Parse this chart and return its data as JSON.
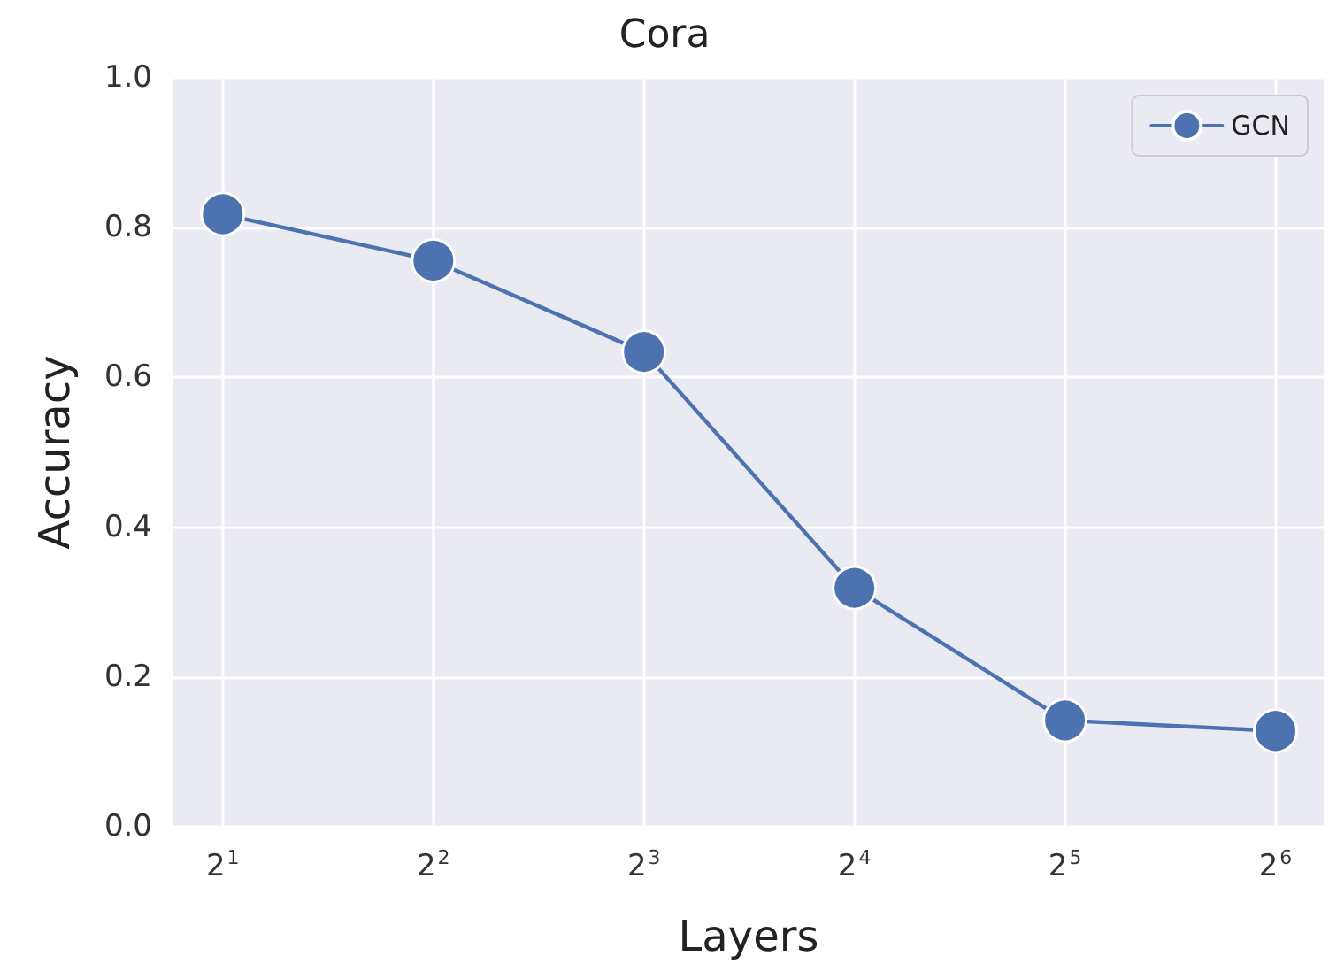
{
  "chart_data": {
    "type": "line",
    "title": "Cora",
    "xlabel": "Layers",
    "ylabel": "Accuracy",
    "x": [
      2,
      4,
      8,
      16,
      32,
      64
    ],
    "series": [
      {
        "name": "GCN",
        "color": "#4c72b0",
        "values": [
          0.818,
          0.756,
          0.634,
          0.319,
          0.142,
          0.128
        ]
      }
    ],
    "log": "x",
    "xlim": [
      1.7,
      75
    ],
    "xticks": [
      {
        "value": 2,
        "label": "2$^{1}$"
      },
      {
        "value": 4,
        "label": "2$^{2}$"
      },
      {
        "value": 8,
        "label": "2$^{3}$"
      },
      {
        "value": 16,
        "label": "2$^{4}$"
      },
      {
        "value": 32,
        "label": "2$^{5}$"
      },
      {
        "value": 64,
        "label": "2$^{6}$"
      }
    ],
    "ylim": [
      0,
      1
    ],
    "yticks": [
      {
        "value": 0,
        "label": "0.0"
      },
      {
        "value": 0.2,
        "label": "0.2"
      },
      {
        "value": 0.4,
        "label": "0.4"
      },
      {
        "value": 0.6,
        "label": "0.6"
      },
      {
        "value": 0.8,
        "label": "0.8"
      },
      {
        "value": 1,
        "label": "1.0"
      }
    ],
    "grid": true,
    "legend": "top right",
    "marker": "circle",
    "line_style": "solid"
  }
}
